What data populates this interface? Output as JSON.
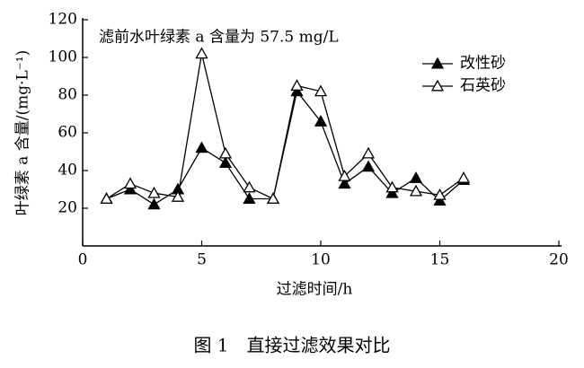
{
  "chart_data": {
    "type": "line",
    "annotation": "滤前水叶绿素 a 含量为 57.5 mg/L",
    "y_label": "叶绿素 a 含量/(mg·L⁻¹)",
    "x_label": "过滤时间/h",
    "caption": "图 1　直接过滤效果对比",
    "x": [
      1,
      2,
      3,
      4,
      5,
      6,
      7,
      8,
      9,
      10,
      11,
      12,
      13,
      14,
      15,
      16
    ],
    "series": [
      {
        "name": "改性砂",
        "color": "#000000",
        "marker": "filled-triangle",
        "values": [
          25,
          30,
          22,
          30,
          52,
          44,
          25,
          25,
          82,
          66,
          33,
          42,
          28,
          36,
          24,
          35
        ]
      },
      {
        "name": "石英砂",
        "color": "#000000",
        "marker": "open-triangle",
        "values": [
          25,
          33,
          28,
          26,
          102,
          49,
          31,
          25,
          85,
          82,
          37,
          49,
          31,
          29,
          27,
          36
        ]
      }
    ],
    "xlim": [
      0,
      20
    ],
    "xticks": [
      0,
      5,
      10,
      15,
      20
    ],
    "ylim": [
      0,
      120
    ],
    "yticks": [
      20,
      40,
      60,
      80,
      100,
      120
    ],
    "grid": false
  }
}
